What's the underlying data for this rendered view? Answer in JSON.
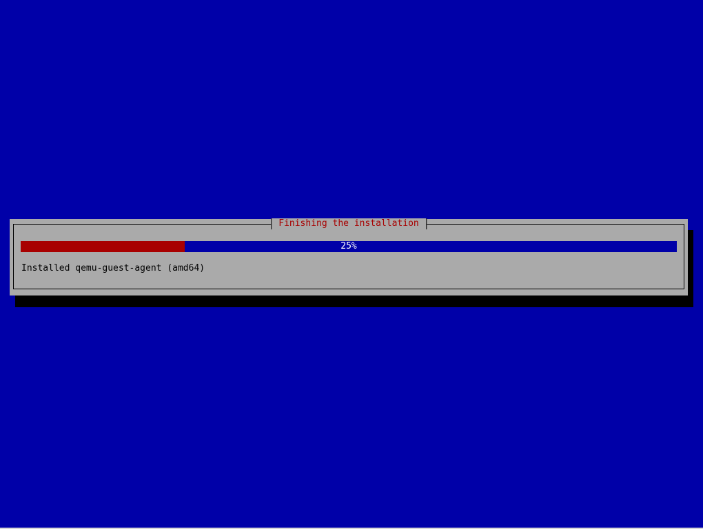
{
  "dialog": {
    "title": "Finishing the installation",
    "progress": {
      "percent": 25,
      "label": "25%"
    },
    "status": "Installed qemu-guest-agent (amd64)"
  },
  "colors": {
    "background": "#0000a8",
    "dialog": "#aaaaaa",
    "title": "#a80000",
    "progress_fill": "#a80000",
    "progress_track": "#0000a8"
  }
}
